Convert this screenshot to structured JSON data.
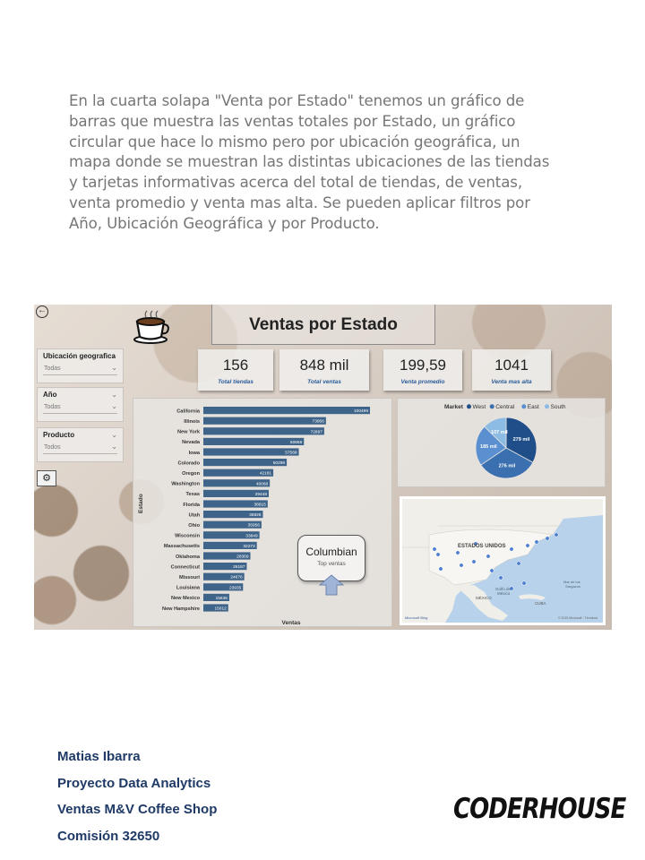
{
  "intro_text": "En la cuarta solapa \"Venta por Estado\" tenemos un gráfico de barras que muestra las ventas totales por Estado, un gráfico circular que hace lo mismo pero por ubicación geográfica, un mapa donde se muestran las distintas ubicaciones de las tiendas y tarjetas informativas acerca del total de tiendas, de ventas, venta promedio y venta mas alta. Se pueden aplicar filtros por Año, Ubicación Geográfica y por Producto.",
  "dashboard": {
    "title": "Ventas por Estado",
    "filters": [
      {
        "label": "Ubicación geografica",
        "value": "Todas"
      },
      {
        "label": "Año",
        "value": "Todas"
      },
      {
        "label": "Producto",
        "value": "Todos"
      }
    ],
    "kpis": [
      {
        "value": "156",
        "label": "Total tiendas"
      },
      {
        "value": "848 mil",
        "label": "Total ventas"
      },
      {
        "value": "199,59",
        "label": "Venta promedio"
      },
      {
        "value": "1041",
        "label": "Venta mas alta"
      }
    ],
    "callout": {
      "name": "Columbian",
      "sub": "Top ventas"
    },
    "map": {
      "country_label": "ESTADOS UNIDOS",
      "mexico_label": "MÉXICO",
      "golfo_label": "Golfo de\nMéxico",
      "cuba_label": "CUBA",
      "mar_label": "Mar de los\nSargazos"
    }
  },
  "chart_data": [
    {
      "type": "bar",
      "orientation": "horizontal",
      "xlabel": "Ventas",
      "ylabel": "Estado",
      "categories": [
        "California",
        "Illinois",
        "New York",
        "Nevada",
        "Iowa",
        "Colorado",
        "Oregon",
        "Washington",
        "Texas",
        "Florida",
        "Utah",
        "Ohio",
        "Wisconsin",
        "Massachusetts",
        "Oklahoma",
        "Connecticut",
        "Missouri",
        "Louisiana",
        "New Mexico",
        "New Hampshire"
      ],
      "values": [
        100499,
        73956,
        72897,
        60656,
        57568,
        50298,
        42181,
        40068,
        39448,
        38815,
        35926,
        35056,
        33849,
        32273,
        28369,
        26187,
        24676,
        23935,
        15636,
        15012
      ],
      "color": "#3f6489"
    },
    {
      "type": "pie",
      "legend_title": "Market",
      "legend_position": "top",
      "slices": [
        {
          "name": "West",
          "value": 279,
          "label": "279 mil",
          "color": "#1f4e89"
        },
        {
          "name": "Central",
          "value": 276,
          "label": "276 mil",
          "color": "#3a6fb0"
        },
        {
          "name": "East",
          "value": 185,
          "label": "185 mil",
          "color": "#5a8fd0"
        },
        {
          "name": "South",
          "value": 107,
          "label": "107 mil",
          "color": "#8cbbe3"
        }
      ]
    }
  ],
  "footer": {
    "author": "Matias Ibarra",
    "project": "Proyecto Data Analytics",
    "subject": "Ventas M&V Coffee Shop",
    "commission": "Comisión 32650",
    "brand": "CODERHOUSE"
  }
}
